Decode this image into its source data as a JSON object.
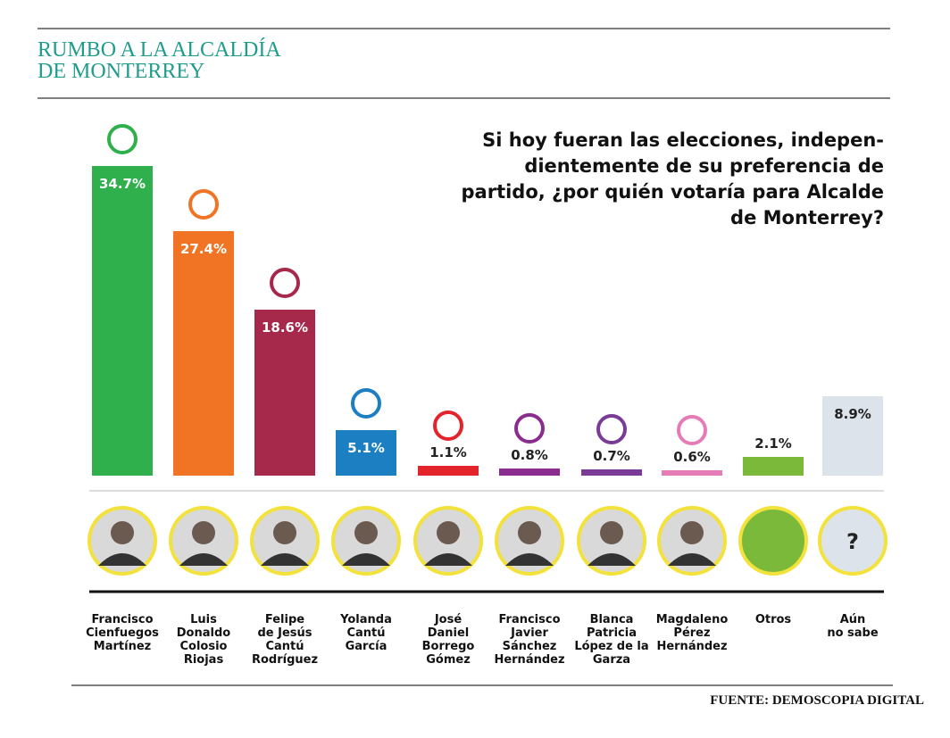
{
  "chart_data": {
    "type": "bar",
    "title": "RUMBO A LA ALCALDÍA\nDE MONTERREY",
    "subtitle": "Si hoy fueran las elecciones, indepen-\ndientemente de su preferencia de\npartido, ¿por quién votaría para Alcalde\nde Monterrey?",
    "categories": [
      "Francisco\nCienfuegos\nMartínez",
      "Luis\nDonaldo\nColosio\nRiojas",
      "Felipe\nde Jesús\nCantú\nRodríguez",
      "Yolanda\nCantú\nGarcía",
      "José\nDaniel\nBorrego\nGómez",
      "Francisco\nJavier\nSánchez\nHernández",
      "Blanca\nPatricia\nLópez de la\nGarza",
      "Magdaleno\nPérez\nHernández",
      "Otros",
      "Aún\nno sabe"
    ],
    "values": [
      34.7,
      27.4,
      18.6,
      5.1,
      1.1,
      0.8,
      0.7,
      0.6,
      2.1,
      8.9
    ],
    "value_labels": [
      "34.7%",
      "27.4%",
      "18.6%",
      "5.1%",
      "1.1%",
      "0.8%",
      "0.7%",
      "0.6%",
      "2.1%",
      "8.9%"
    ],
    "colors": [
      "#2fb04c",
      "#f07423",
      "#a6294b",
      "#1b7fc2",
      "#e3242c",
      "#8b2c8f",
      "#7a3b97",
      "#e67cb7",
      "#7ab93a",
      "#dde3ea"
    ],
    "source": "FUENTE: DEMOSCOPIA DIGITAL"
  },
  "photos": {
    "unknown_symbol": "?"
  }
}
